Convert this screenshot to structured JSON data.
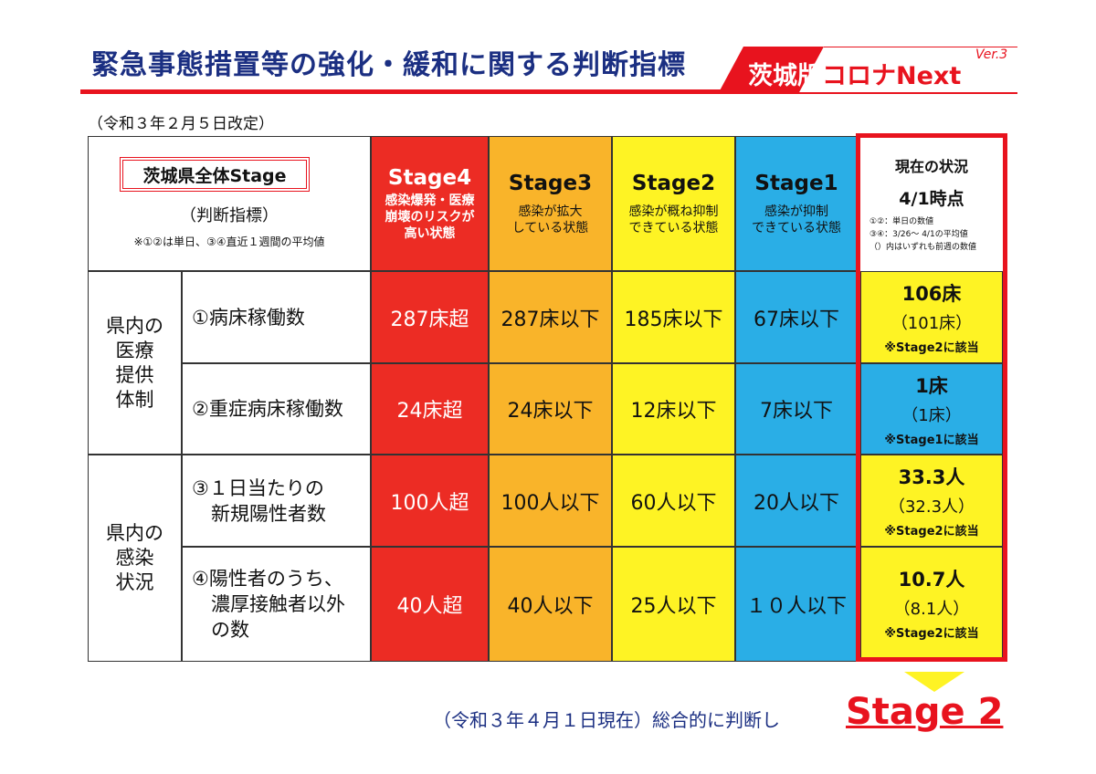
{
  "header": {
    "title": "緊急事態措置等の強化・緩和に関する判断指標",
    "brand_part1": "茨城版",
    "brand_part2": "コロナNext",
    "brand_version": "Ver.3",
    "revised": "（令和３年２月５日改定）"
  },
  "corner": {
    "badge": "茨城県全体Stage",
    "subtitle": "（判断指標）",
    "note": "※①②は単日、③④直近１週間の平均値"
  },
  "stages": [
    {
      "label": "Stage4",
      "desc1": "感染爆発・医療",
      "desc2": "崩壊のリスクが",
      "desc3": "高い状態"
    },
    {
      "label": "Stage3",
      "desc1": "感染が拡大",
      "desc2": "している状態"
    },
    {
      "label": "Stage2",
      "desc1": "感染が概ね抑制",
      "desc2": "できている状態"
    },
    {
      "label": "Stage1",
      "desc1": "感染が抑制",
      "desc2": "できている状態"
    }
  ],
  "current": {
    "title": "現在の状況",
    "date": "4/1時点",
    "note1": "①②：単日の数値",
    "note2": "③④：3/26～ 4/1の平均値",
    "note3": "（）内はいずれも前週の数値"
  },
  "groups": [
    {
      "lines": [
        "県内の",
        "医療",
        "提供",
        "体制"
      ]
    },
    {
      "lines": [
        "県内の",
        "感染",
        "状況"
      ]
    }
  ],
  "rows": [
    {
      "label": [
        "①病床稼働数"
      ],
      "values": [
        "287床超",
        "287床以下",
        "185床以下",
        "67床以下"
      ],
      "current": {
        "value": "106床",
        "prev": "（101床）",
        "stage": "※Stage2に該当",
        "color": "#fef324"
      }
    },
    {
      "label": [
        "②重症病床稼働数"
      ],
      "values": [
        "24床超",
        "24床以下",
        "12床以下",
        "7床以下"
      ],
      "current": {
        "value": "1床",
        "prev": "（1床）",
        "stage": "※Stage1に該当",
        "color": "#2aaee6"
      }
    },
    {
      "label": [
        "③１日当たりの",
        "　新規陽性者数"
      ],
      "values": [
        "100人超",
        "100人以下",
        "60人以下",
        "20人以下"
      ],
      "current": {
        "value": "33.3人",
        "prev": "（32.3人）",
        "stage": "※Stage2に該当",
        "color": "#fef324"
      }
    },
    {
      "label": [
        "④陽性者のうち、",
        "　濃厚接触者以外",
        "　の数"
      ],
      "values": [
        "40人超",
        "40人以下",
        "25人以下",
        "１０人以下"
      ],
      "current": {
        "value": "10.7人",
        "prev": "（8.1人）",
        "stage": "※Stage2に該当",
        "color": "#fef324"
      }
    }
  ],
  "footer": {
    "text": "（令和３年４月１日現在）総合的に判断し",
    "result": "Stage 2"
  },
  "colors": {
    "stage4": "#ec2c24",
    "stage3": "#f9b42a",
    "stage2": "#fef324",
    "stage1": "#2aaee6",
    "accent": "#e8131e",
    "navy": "#1b2f82"
  }
}
